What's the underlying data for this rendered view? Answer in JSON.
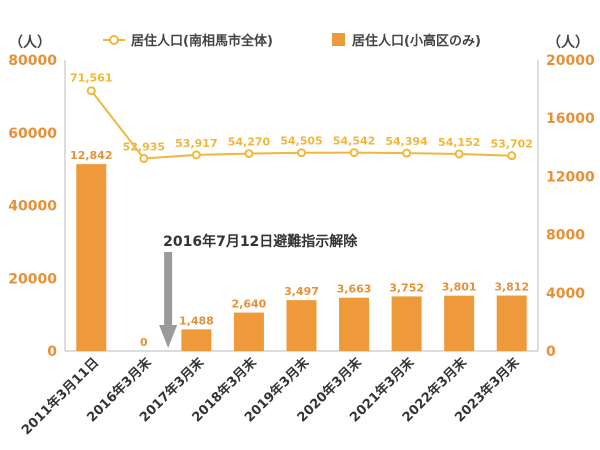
{
  "chart_data": {
    "type": "bar",
    "categories": [
      "2011年3月11日",
      "2016年3月末",
      "2017年3月末",
      "2018年3月末",
      "2019年3月末",
      "2020年3月末",
      "2021年3月末",
      "2022年3月末",
      "2023年3月末"
    ],
    "series": [
      {
        "name": "居住人口(南相馬市全体)",
        "type": "line",
        "axis": "left",
        "values": [
          71561,
          52935,
          53917,
          54270,
          54505,
          54542,
          54394,
          54152,
          53702
        ],
        "labels": [
          "71,561",
          "52,935",
          "53,917",
          "54,270",
          "54,505",
          "54,542",
          "54,394",
          "54,152",
          "53,702"
        ],
        "color": "#f0b73a"
      },
      {
        "name": "居住人口(小高区のみ)",
        "type": "bar",
        "axis": "right",
        "values": [
          12842,
          0,
          1488,
          2640,
          3497,
          3663,
          3752,
          3801,
          3812
        ],
        "labels": [
          "12,842",
          "0",
          "1,488",
          "2,640",
          "3,497",
          "3,663",
          "3,752",
          "3,801",
          "3,812"
        ],
        "color": "#ee9a3a"
      }
    ],
    "y_left": {
      "unit": "（人）",
      "ylim": [
        0,
        80000
      ],
      "ticks": [
        "0",
        "20000",
        "40000",
        "60000",
        "80000"
      ]
    },
    "y_right": {
      "unit": "（人）",
      "ylim": [
        0,
        20000
      ],
      "ticks": [
        "0",
        "4000",
        "8000",
        "12000",
        "16000",
        "20000"
      ]
    },
    "grid": false,
    "legend_position": "top",
    "annotation": {
      "text": "2016年7月12日避難指示解除",
      "category_index": 1
    }
  }
}
